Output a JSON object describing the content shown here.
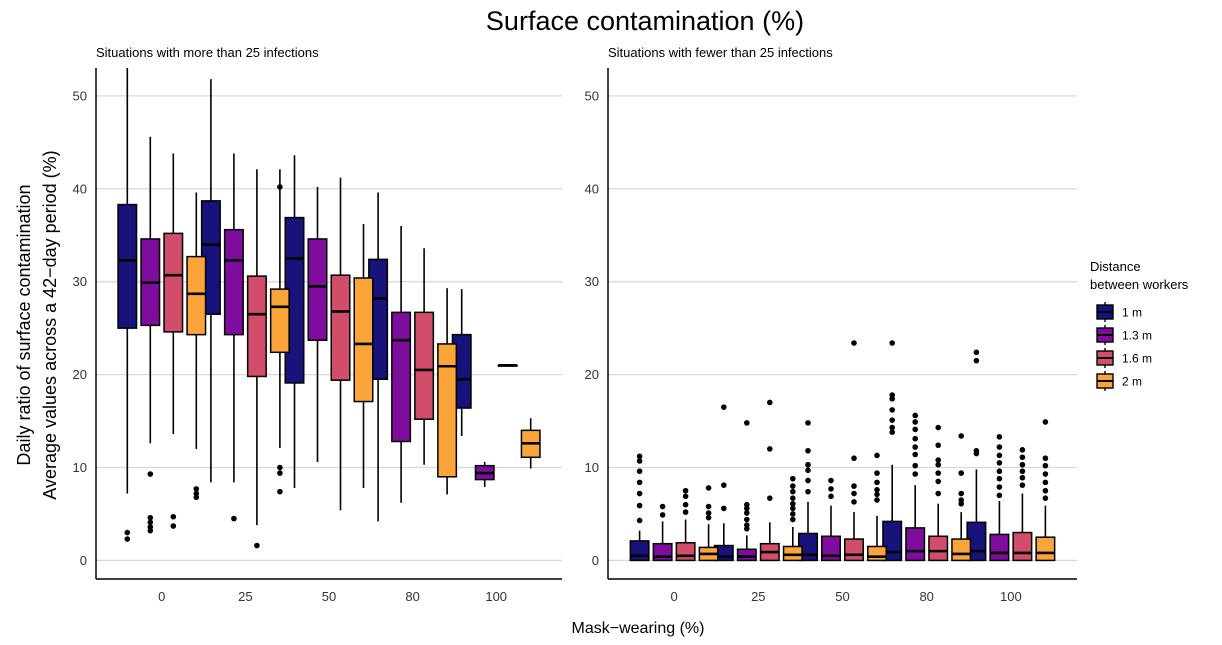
{
  "title": "Surface contamination (%)",
  "ylabel_line1": "Daily ratio of surface contamination",
  "ylabel_line2": "Average values across a 42−day period (%)",
  "xlabel": "Mask−wearing (%)",
  "legend": {
    "title_line1": "Distance",
    "title_line2": "between workers",
    "entries": [
      "1 m",
      "1.3 m",
      "1.6 m",
      "2 m"
    ]
  },
  "colors": {
    "1 m": "#17137a",
    "1.3 m": "#7e0c9c",
    "1.6 m": "#d14d6a",
    "2 m": "#fba43a"
  },
  "chart_data": [
    {
      "type": "boxplot",
      "subtitle": "Situations with more than 25 infections",
      "categories": [
        "0",
        "25",
        "50",
        "80",
        "100"
      ],
      "ylim": [
        -2,
        53
      ],
      "yticks": [
        0,
        10,
        20,
        30,
        40,
        50
      ],
      "grid": true,
      "series": [
        {
          "name": "1 m",
          "boxes": [
            {
              "lo": 7.2,
              "q1": 25.0,
              "med": 32.3,
              "q3": 38.3,
              "hi": 53.0,
              "out": [
                2.3,
                3.0
              ]
            },
            {
              "lo": 8.4,
              "q1": 26.5,
              "med": 34.0,
              "q3": 38.7,
              "hi": 51.8,
              "out": []
            },
            {
              "lo": 7.8,
              "q1": 19.1,
              "med": 32.5,
              "q3": 36.9,
              "hi": 43.6,
              "out": []
            },
            {
              "lo": 4.2,
              "q1": 19.5,
              "med": 28.2,
              "q3": 32.4,
              "hi": 39.6,
              "out": []
            },
            {
              "lo": 13.4,
              "q1": 16.4,
              "med": 19.5,
              "q3": 24.3,
              "hi": 29.2,
              "out": []
            }
          ]
        },
        {
          "name": "1.3 m",
          "boxes": [
            {
              "lo": 12.6,
              "q1": 25.3,
              "med": 29.9,
              "q3": 34.6,
              "hi": 45.6,
              "out": [
                3.2,
                3.6,
                4.1,
                4.6,
                9.3
              ]
            },
            {
              "lo": 8.4,
              "q1": 24.3,
              "med": 32.3,
              "q3": 35.6,
              "hi": 43.8,
              "out": [
                4.5
              ]
            },
            {
              "lo": 10.6,
              "q1": 23.7,
              "med": 29.5,
              "q3": 34.6,
              "hi": 40.2,
              "out": []
            },
            {
              "lo": 6.2,
              "q1": 12.8,
              "med": 23.7,
              "q3": 26.7,
              "hi": 36.0,
              "out": []
            },
            {
              "lo": 7.9,
              "q1": 8.7,
              "med": 9.4,
              "q3": 10.2,
              "hi": 10.6,
              "out": []
            }
          ]
        },
        {
          "name": "1.6 m",
          "boxes": [
            {
              "lo": 13.6,
              "q1": 24.6,
              "med": 30.7,
              "q3": 35.2,
              "hi": 43.8,
              "out": [
                3.7,
                4.7
              ]
            },
            {
              "lo": 3.8,
              "q1": 19.8,
              "med": 26.5,
              "q3": 30.6,
              "hi": 42.1,
              "out": [
                1.6
              ]
            },
            {
              "lo": 5.4,
              "q1": 19.4,
              "med": 26.8,
              "q3": 30.7,
              "hi": 41.2,
              "out": []
            },
            {
              "lo": 10.3,
              "q1": 15.2,
              "med": 20.5,
              "q3": 26.7,
              "hi": 33.6,
              "out": []
            },
            {
              "lo": 21.0,
              "q1": 21.0,
              "med": 21.0,
              "q3": 21.0,
              "hi": 21.0,
              "out": []
            }
          ]
        },
        {
          "name": "2 m",
          "boxes": [
            {
              "lo": 12.0,
              "q1": 24.3,
              "med": 28.7,
              "q3": 32.7,
              "hi": 39.6,
              "out": [
                6.8,
                7.2,
                7.7
              ]
            },
            {
              "lo": 12.1,
              "q1": 22.4,
              "med": 27.3,
              "q3": 29.2,
              "hi": 42.1,
              "out": [
                7.4,
                9.4,
                10.0,
                40.2
              ]
            },
            {
              "lo": 7.8,
              "q1": 17.1,
              "med": 23.3,
              "q3": 30.4,
              "hi": 36.2,
              "out": []
            },
            {
              "lo": 7.1,
              "q1": 9.0,
              "med": 20.9,
              "q3": 23.3,
              "hi": 29.3,
              "out": []
            },
            {
              "lo": 9.9,
              "q1": 11.1,
              "med": 12.6,
              "q3": 14.0,
              "hi": 15.3,
              "out": []
            }
          ]
        }
      ]
    },
    {
      "type": "boxplot",
      "subtitle": "Situations with fewer than 25 infections",
      "categories": [
        "0",
        "25",
        "50",
        "80",
        "100"
      ],
      "ylim": [
        -2,
        53
      ],
      "yticks": [
        0,
        10,
        20,
        30,
        40,
        50
      ],
      "grid": true,
      "series": [
        {
          "name": "1 m",
          "boxes": [
            {
              "lo": 0,
              "q1": 0,
              "med": 0.5,
              "q3": 2.1,
              "hi": 3.2,
              "out": [
                4.3,
                5.9,
                7.2,
                8.4,
                9.6,
                10.7,
                11.2
              ]
            },
            {
              "lo": 0,
              "q1": 0,
              "med": 0.4,
              "q3": 1.6,
              "hi": 4.0,
              "out": [
                5.6,
                8.1,
                16.5
              ]
            },
            {
              "lo": 0,
              "q1": 0,
              "med": 0.6,
              "q3": 2.9,
              "hi": 6.3,
              "out": [
                7.4,
                8.6,
                9.7,
                10.3,
                11.8,
                14.8
              ]
            },
            {
              "lo": 0,
              "q1": 0,
              "med": 0.9,
              "q3": 4.2,
              "hi": 10.3,
              "out": [
                13.8,
                14.3,
                15.1,
                16.2,
                17.4,
                17.8,
                23.4
              ]
            },
            {
              "lo": 0,
              "q1": 0,
              "med": 1.0,
              "q3": 4.1,
              "hi": 9.8,
              "out": [
                11.5,
                11.8,
                21.5,
                22.4
              ]
            }
          ]
        },
        {
          "name": "1.3 m",
          "boxes": [
            {
              "lo": 0,
              "q1": 0,
              "med": 0.4,
              "q3": 1.8,
              "hi": 4.2,
              "out": [
                4.9,
                5.8
              ]
            },
            {
              "lo": 0,
              "q1": 0,
              "med": 0.4,
              "q3": 1.2,
              "hi": 2.7,
              "out": [
                3.4,
                3.8,
                4.4,
                5.1,
                5.6,
                6.0,
                14.8
              ]
            },
            {
              "lo": 0,
              "q1": 0,
              "med": 0.5,
              "q3": 2.6,
              "hi": 5.9,
              "out": [
                6.9,
                7.7,
                8.6
              ]
            },
            {
              "lo": 0,
              "q1": 0,
              "med": 1.0,
              "q3": 3.5,
              "hi": 8.1,
              "out": [
                9.3,
                10.2,
                11.4,
                12.2,
                13.1,
                14.1,
                14.9,
                15.6
              ]
            },
            {
              "lo": 0,
              "q1": 0,
              "med": 0.8,
              "q3": 2.8,
              "hi": 6.4,
              "out": [
                7.0,
                7.9,
                8.8,
                9.6,
                10.5,
                11.3,
                12.2,
                13.3
              ]
            }
          ]
        },
        {
          "name": "1.6 m",
          "boxes": [
            {
              "lo": 0,
              "q1": 0,
              "med": 0.5,
              "q3": 1.9,
              "hi": 4.4,
              "out": [
                5.2,
                6.0,
                6.9,
                7.5
              ]
            },
            {
              "lo": 0,
              "q1": 0,
              "med": 0.9,
              "q3": 1.8,
              "hi": 4.1,
              "out": [
                6.7,
                12.0,
                17.0
              ]
            },
            {
              "lo": 0,
              "q1": 0,
              "med": 0.6,
              "q3": 2.3,
              "hi": 5.2,
              "out": [
                6.3,
                7.2,
                8.0,
                11.0,
                23.4
              ]
            },
            {
              "lo": 0,
              "q1": 0,
              "med": 1.0,
              "q3": 2.6,
              "hi": 6.1,
              "out": [
                7.2,
                8.5,
                9.4,
                10.3,
                10.8,
                12.4,
                14.3
              ]
            },
            {
              "lo": 0,
              "q1": 0,
              "med": 0.8,
              "q3": 3.0,
              "hi": 7.2,
              "out": [
                8.1,
                8.9,
                9.6,
                10.3,
                11.1,
                11.9
              ]
            }
          ]
        },
        {
          "name": "2 m",
          "boxes": [
            {
              "lo": 0,
              "q1": 0,
              "med": 0.7,
              "q3": 1.4,
              "hi": 3.9,
              "out": [
                4.6,
                5.1,
                5.8,
                7.8
              ]
            },
            {
              "lo": 0,
              "q1": 0,
              "med": 0.6,
              "q3": 1.5,
              "hi": 3.6,
              "out": [
                4.4,
                5.0,
                5.6,
                6.1,
                6.7,
                7.4,
                8.0,
                8.8
              ]
            },
            {
              "lo": 0,
              "q1": 0,
              "med": 0.4,
              "q3": 1.5,
              "hi": 4.8,
              "out": [
                6.5,
                7.1,
                7.6,
                8.4,
                9.4,
                11.3
              ]
            },
            {
              "lo": 0,
              "q1": 0,
              "med": 0.7,
              "q3": 2.3,
              "hi": 5.2,
              "out": [
                6.1,
                6.5,
                7.2,
                9.4,
                13.4
              ]
            },
            {
              "lo": 0,
              "q1": 0,
              "med": 0.8,
              "q3": 2.5,
              "hi": 5.9,
              "out": [
                6.7,
                7.5,
                8.4,
                9.3,
                10.2,
                11.0,
                14.9
              ]
            }
          ]
        }
      ]
    }
  ]
}
